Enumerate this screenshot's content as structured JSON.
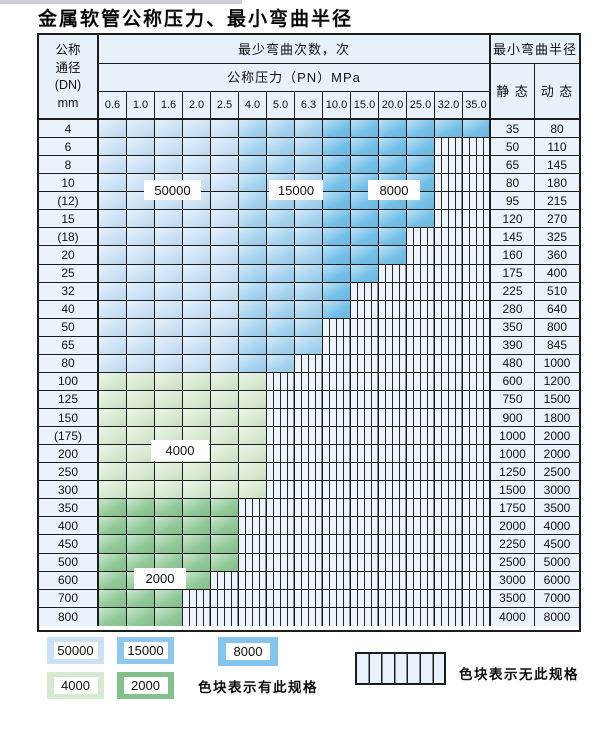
{
  "title": "金属软管公称压力、最小弯曲半径",
  "table": {
    "header": {
      "dn_lines": [
        "公称",
        "通径",
        "(DN)",
        "mm"
      ],
      "bend_times": "最少弯曲次数，次",
      "pressure": "公称压力（PN）MPa",
      "min_radius": "最小弯曲半径",
      "static_label": "静 态",
      "dynamic_label": "动 态",
      "pressure_columns": [
        "0.6",
        "1.0",
        "1.6",
        "2.0",
        "2.5",
        "4.0",
        "5.0",
        "6.3",
        "10.0",
        "15.0",
        "20.0",
        "25.0",
        "32.0",
        "35.0"
      ]
    },
    "overlays": [
      {
        "text": "50000"
      },
      {
        "text": "15000"
      },
      {
        "text": "8000"
      },
      {
        "text": "4000"
      },
      {
        "text": "2000"
      }
    ],
    "rows": [
      {
        "dn": "4",
        "colored": 14,
        "shade": "blue",
        "static": "35",
        "dynamic": "80"
      },
      {
        "dn": "6",
        "colored": 12,
        "shade": "blue",
        "static": "50",
        "dynamic": "110"
      },
      {
        "dn": "8",
        "colored": 12,
        "shade": "blue",
        "static": "65",
        "dynamic": "145"
      },
      {
        "dn": "10",
        "colored": 12,
        "shade": "blue",
        "static": "80",
        "dynamic": "180"
      },
      {
        "dn": "(12)",
        "colored": 12,
        "shade": "blue",
        "static": "95",
        "dynamic": "215"
      },
      {
        "dn": "15",
        "colored": 12,
        "shade": "blue",
        "static": "120",
        "dynamic": "270"
      },
      {
        "dn": "(18)",
        "colored": 11,
        "shade": "blue",
        "static": "145",
        "dynamic": "325"
      },
      {
        "dn": "20",
        "colored": 11,
        "shade": "blue",
        "static": "160",
        "dynamic": "360"
      },
      {
        "dn": "25",
        "colored": 10,
        "shade": "blue",
        "static": "175",
        "dynamic": "400"
      },
      {
        "dn": "32",
        "colored": 9,
        "shade": "blue",
        "static": "225",
        "dynamic": "510"
      },
      {
        "dn": "40",
        "colored": 9,
        "shade": "blue",
        "static": "280",
        "dynamic": "640"
      },
      {
        "dn": "50",
        "colored": 8,
        "shade": "blue",
        "static": "350",
        "dynamic": "800"
      },
      {
        "dn": "65",
        "colored": 8,
        "shade": "blue",
        "static": "390",
        "dynamic": "845"
      },
      {
        "dn": "80",
        "colored": 7,
        "shade": "blue",
        "static": "480",
        "dynamic": "1000"
      },
      {
        "dn": "100",
        "colored": 6,
        "shade": "g4000",
        "static": "600",
        "dynamic": "1200"
      },
      {
        "dn": "125",
        "colored": 6,
        "shade": "g4000",
        "static": "750",
        "dynamic": "1500"
      },
      {
        "dn": "150",
        "colored": 6,
        "shade": "g4000",
        "static": "900",
        "dynamic": "1800"
      },
      {
        "dn": "(175)",
        "colored": 6,
        "shade": "g4000",
        "static": "1000",
        "dynamic": "2000"
      },
      {
        "dn": "200",
        "colored": 6,
        "shade": "g4000",
        "static": "1000",
        "dynamic": "2000"
      },
      {
        "dn": "250",
        "colored": 6,
        "shade": "g4000",
        "static": "1250",
        "dynamic": "2500"
      },
      {
        "dn": "300",
        "colored": 6,
        "shade": "g4000",
        "static": "1500",
        "dynamic": "3000"
      },
      {
        "dn": "350",
        "colored": 5,
        "shade": "g2000",
        "static": "1750",
        "dynamic": "3500"
      },
      {
        "dn": "400",
        "colored": 5,
        "shade": "g2000",
        "static": "2000",
        "dynamic": "4000"
      },
      {
        "dn": "450",
        "colored": 5,
        "shade": "g2000",
        "static": "2250",
        "dynamic": "4500"
      },
      {
        "dn": "500",
        "colored": 5,
        "shade": "g2000",
        "static": "2500",
        "dynamic": "5000"
      },
      {
        "dn": "600",
        "colored": 4,
        "shade": "g2000",
        "static": "3000",
        "dynamic": "6000"
      },
      {
        "dn": "700",
        "colored": 3,
        "shade": "g2000",
        "static": "3500",
        "dynamic": "7000"
      },
      {
        "dn": "800",
        "colored": 3,
        "shade": "g2000",
        "static": "4000",
        "dynamic": "8000"
      }
    ],
    "blue_band_split": {
      "c50000_cols": 5,
      "c15000_cols": 3
    }
  },
  "legend": {
    "colors": {
      "c50000": "#cbe2f5",
      "c15000": "#a6d3f0",
      "c15000e": "#8fc8ed",
      "c8000": "#74c0e9",
      "c8000e": "#85c5ec",
      "c4000": "#d7e9d0",
      "c2000": "#90c897",
      "c2000e": "#82c28a"
    },
    "items": [
      {
        "label": "50000"
      },
      {
        "label": "15000"
      },
      {
        "label": "8000"
      },
      {
        "label": "4000"
      },
      {
        "label": "2000"
      }
    ],
    "has_spec_text": "色块表示有此规格",
    "no_spec_text": "色块表示无此规格"
  }
}
